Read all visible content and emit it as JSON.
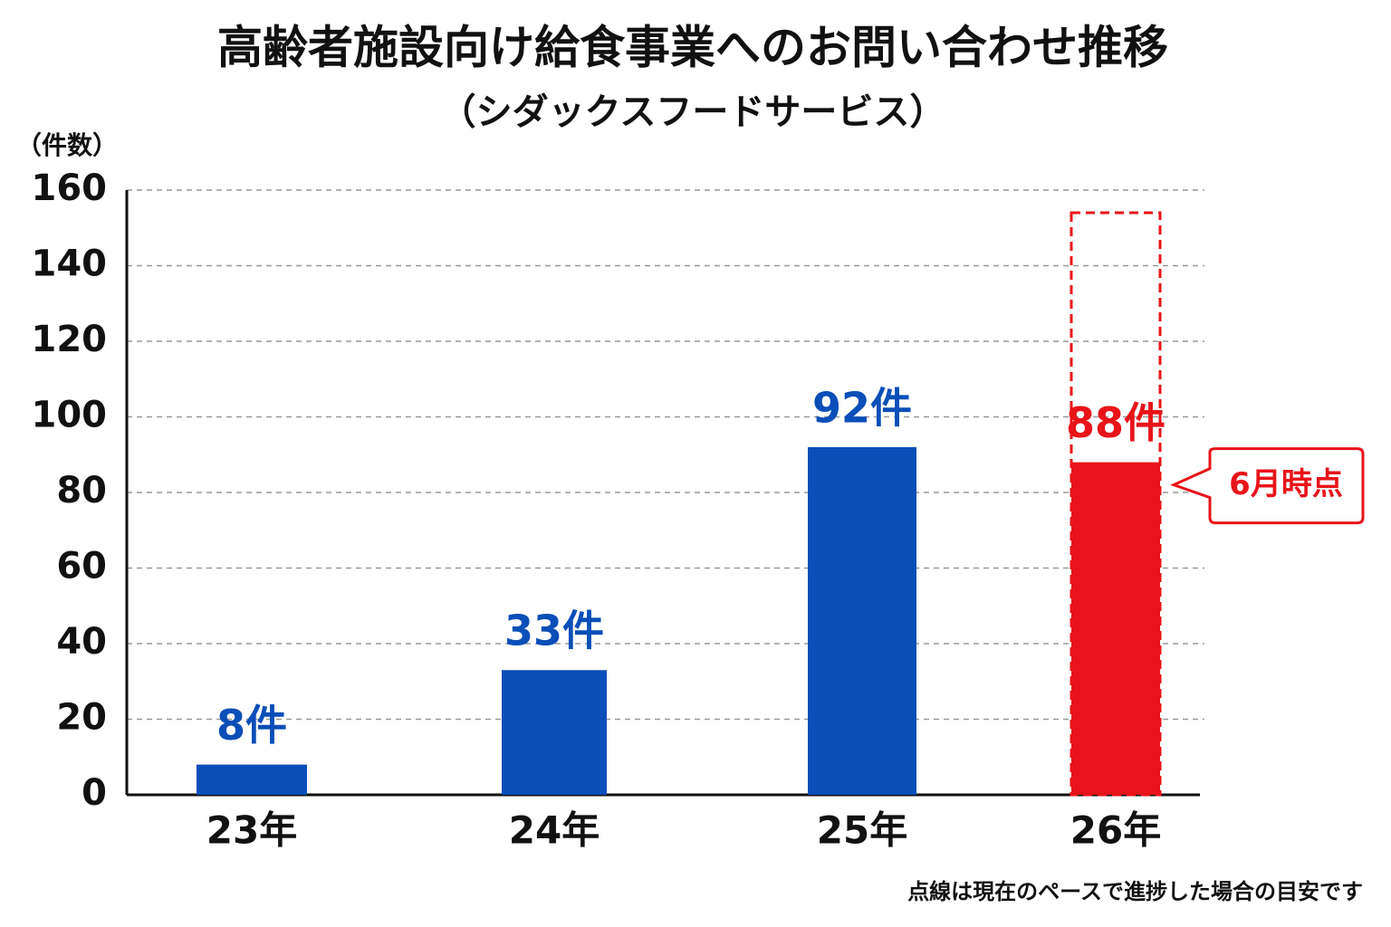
{
  "chart_data": {
    "type": "bar",
    "title": "高齢者施設向け給食事業へのお問い合わせ推移",
    "subtitle": "（シダックスフードサービス）",
    "y_label": "（件数）",
    "categories": [
      "23年",
      "24年",
      "25年",
      "26年"
    ],
    "values": [
      8,
      33,
      92,
      88
    ],
    "value_labels": [
      "8件",
      "33件",
      "92件",
      "88件"
    ],
    "colors": [
      "#0a4fb8",
      "#0a4fb8",
      "#0a4fb8",
      "#e8141a"
    ],
    "projected_values": [
      null,
      null,
      null,
      154
    ],
    "projection_color": "#e8141a",
    "callout": "6月時点",
    "footnote": "点線は現在のペースで進捗した場合の目安です",
    "ylim": [
      0,
      160
    ],
    "yticks": [
      0,
      20,
      40,
      60,
      80,
      100,
      120,
      140,
      160
    ],
    "grid": true
  }
}
